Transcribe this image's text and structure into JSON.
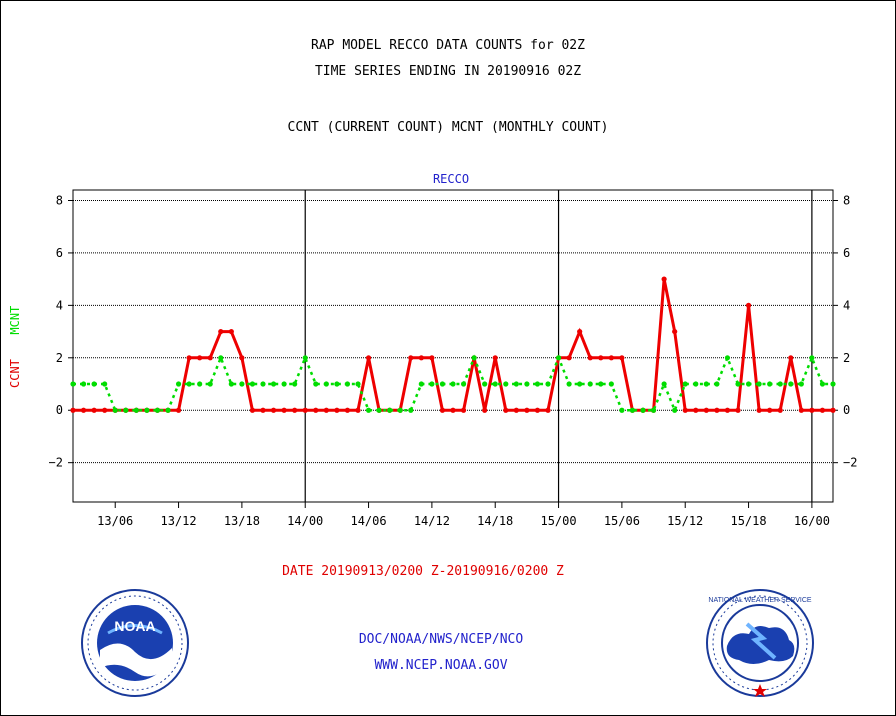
{
  "header": {
    "title_line1": "RAP MODEL RECCO DATA COUNTS for 02Z",
    "title_line2": "TIME SERIES ENDING IN 20190916 02Z",
    "title_line3": "CCNT (CURRENT COUNT) MCNT (MONTHLY COUNT)"
  },
  "footer": {
    "date_range": "DATE 20190913/0200 Z-20190916/0200 Z",
    "org_line": "DOC/NOAA/NWS/NCEP/NCO",
    "url_line": "WWW.NCEP.NOAA.GOV"
  },
  "logos": {
    "left_text": "NOAA",
    "right_text": "NATIONAL WEATHER SERVICE"
  },
  "chart_data": {
    "type": "line",
    "title": "RECCO",
    "ylabel_parts": [
      {
        "text": "CCNT",
        "color": "#e00000"
      },
      {
        "text": "MCNT",
        "color": "#00dd00"
      }
    ],
    "ylim": [
      -3.5,
      8.4
    ],
    "yticks": [
      -2,
      0,
      2,
      4,
      6,
      8
    ],
    "ytick_labels": [
      "−2",
      "0",
      "2",
      "4",
      "6",
      "8"
    ],
    "xlim": [
      "13/02",
      "16/02"
    ],
    "xtick_labels": [
      "13/06",
      "13/12",
      "13/18",
      "14/00",
      "14/06",
      "14/12",
      "14/18",
      "15/00",
      "15/06",
      "15/12",
      "15/18",
      "16/00"
    ],
    "xtick_hours_since_13_00": [
      6,
      12,
      18,
      24,
      30,
      36,
      42,
      48,
      54,
      60,
      66,
      72
    ],
    "day_boundaries": [
      "14/00",
      "15/00",
      "16/00"
    ],
    "grid": true,
    "x_hours_since_13_00": [
      2,
      3,
      4,
      5,
      6,
      7,
      8,
      9,
      10,
      11,
      12,
      13,
      14,
      15,
      16,
      17,
      18,
      19,
      20,
      21,
      22,
      23,
      24,
      25,
      26,
      27,
      28,
      29,
      30,
      31,
      32,
      33,
      34,
      35,
      36,
      37,
      38,
      39,
      40,
      41,
      42,
      43,
      44,
      45,
      46,
      47,
      48,
      49,
      50,
      51,
      52,
      53,
      54,
      55,
      56,
      57,
      58,
      59,
      60,
      61,
      62,
      63,
      64,
      65,
      66,
      67,
      68,
      69,
      70,
      71,
      72,
      73,
      74
    ],
    "series": [
      {
        "name": "CCNT",
        "color": "#ee0000",
        "style": "solid",
        "values": [
          0,
          0,
          0,
          0,
          0,
          0,
          0,
          0,
          0,
          0,
          0,
          2,
          2,
          2,
          3,
          3,
          2,
          0,
          0,
          0,
          0,
          0,
          0,
          0,
          0,
          0,
          0,
          0,
          2,
          0,
          0,
          0,
          2,
          2,
          2,
          0,
          0,
          0,
          2,
          0,
          2,
          0,
          0,
          0,
          0,
          0,
          2,
          2,
          3,
          2,
          2,
          2,
          2,
          0,
          0,
          0,
          5,
          3,
          0,
          0,
          0,
          0,
          0,
          0,
          4,
          0,
          0,
          0,
          2,
          0,
          0,
          0,
          0
        ]
      },
      {
        "name": "MCNT",
        "color": "#00dd00",
        "style": "dotted",
        "values": [
          1,
          1,
          1,
          1,
          0,
          0,
          0,
          0,
          0,
          0,
          1,
          1,
          1,
          1,
          2,
          1,
          1,
          1,
          1,
          1,
          1,
          1,
          2,
          1,
          1,
          1,
          1,
          1,
          0,
          0,
          0,
          0,
          0,
          1,
          1,
          1,
          1,
          1,
          2,
          1,
          1,
          1,
          1,
          1,
          1,
          1,
          2,
          1,
          1,
          1,
          1,
          1,
          0,
          0,
          0,
          0,
          1,
          0,
          1,
          1,
          1,
          1,
          2,
          1,
          1,
          1,
          1,
          1,
          1,
          1,
          2,
          1,
          1
        ]
      }
    ]
  }
}
